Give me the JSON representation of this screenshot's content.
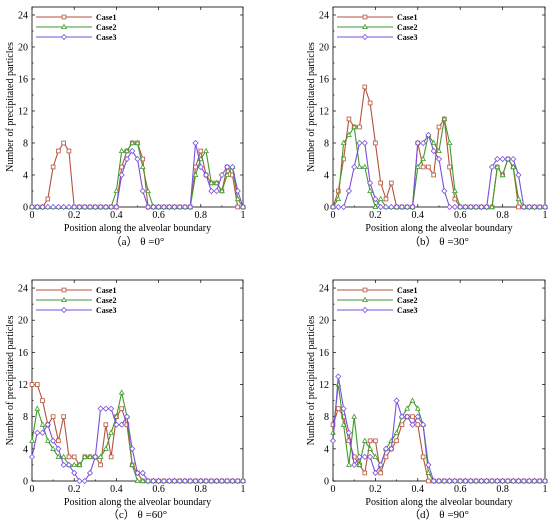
{
  "colors": {
    "case1": "#b5523a",
    "case2": "#3f9a2b",
    "case3": "#7a4fe0"
  },
  "chart_data": [
    {
      "type": "line",
      "panel": "(a)",
      "title": "（a）  θ =0°",
      "xlabel": "Position along the alveolar boundary",
      "ylabel": "Number of precipitated particles",
      "xlim": [
        0,
        1
      ],
      "ylim": [
        0,
        25
      ],
      "xticks": [
        "0",
        "0.2",
        "0.4",
        "0.6",
        "0.8",
        "1"
      ],
      "yticks": [
        "0",
        "4",
        "8",
        "12",
        "16",
        "20",
        "24"
      ],
      "legend": "top-left",
      "x": [
        0,
        0.025,
        0.05,
        0.075,
        0.1,
        0.125,
        0.15,
        0.175,
        0.2,
        0.225,
        0.25,
        0.275,
        0.3,
        0.325,
        0.35,
        0.375,
        0.4,
        0.425,
        0.45,
        0.475,
        0.5,
        0.525,
        0.55,
        0.575,
        0.6,
        0.625,
        0.65,
        0.675,
        0.7,
        0.725,
        0.75,
        0.775,
        0.8,
        0.825,
        0.85,
        0.875,
        0.9,
        0.925,
        0.95,
        0.975,
        1
      ],
      "series": [
        {
          "name": "Case1",
          "values": [
            0,
            0,
            0,
            1,
            5,
            7,
            8,
            7,
            0,
            0,
            0,
            0,
            0,
            0,
            0,
            0,
            0,
            5,
            7,
            8,
            8,
            6,
            0,
            0,
            0,
            0,
            0,
            0,
            0,
            0,
            0,
            5,
            7,
            4,
            3,
            3,
            2,
            5,
            4,
            0,
            0
          ]
        },
        {
          "name": "Case2",
          "values": [
            0,
            0,
            0,
            0,
            0,
            0,
            0,
            0,
            0,
            0,
            0,
            0,
            0,
            0,
            0,
            0,
            2,
            7,
            7,
            8,
            8,
            5,
            2,
            0,
            0,
            0,
            0,
            0,
            0,
            0,
            0,
            4,
            6,
            7,
            3,
            3,
            2,
            4,
            5,
            1,
            0
          ]
        },
        {
          "name": "Case3",
          "values": [
            0,
            0,
            0,
            0,
            0,
            0,
            0,
            0,
            0,
            0,
            0,
            0,
            0,
            0,
            0,
            0,
            0,
            4,
            6,
            7,
            6,
            2,
            0,
            0,
            0,
            0,
            0,
            0,
            0,
            0,
            0,
            8,
            5,
            4,
            2,
            2,
            4,
            5,
            5,
            2,
            0
          ]
        }
      ]
    },
    {
      "type": "line",
      "panel": "(b)",
      "title": "（b）  θ =30°",
      "xlabel": "Position along the alveolar boundary",
      "ylabel": "Number of precipitated particles",
      "xlim": [
        0,
        1
      ],
      "ylim": [
        0,
        25
      ],
      "xticks": [
        "0",
        "0.2",
        "0.4",
        "0.6",
        "0.8",
        "1"
      ],
      "yticks": [
        "0",
        "4",
        "8",
        "12",
        "16",
        "20",
        "24"
      ],
      "legend": "top-left",
      "x": [
        0,
        0.025,
        0.05,
        0.075,
        0.1,
        0.125,
        0.15,
        0.175,
        0.2,
        0.225,
        0.25,
        0.275,
        0.3,
        0.325,
        0.35,
        0.375,
        0.4,
        0.425,
        0.45,
        0.475,
        0.5,
        0.525,
        0.55,
        0.575,
        0.6,
        0.625,
        0.65,
        0.675,
        0.7,
        0.725,
        0.75,
        0.775,
        0.8,
        0.825,
        0.85,
        0.875,
        0.9,
        0.925,
        0.95,
        0.975,
        1
      ],
      "series": [
        {
          "name": "Case1",
          "values": [
            0,
            2,
            6,
            11,
            10,
            10,
            15,
            13,
            8,
            3,
            1,
            3,
            0,
            0,
            0,
            0,
            8,
            5,
            5,
            4,
            10,
            11,
            5,
            1,
            0,
            0,
            0,
            0,
            0,
            0,
            0,
            5,
            4,
            6,
            5,
            0,
            0,
            0,
            0,
            0,
            0
          ]
        },
        {
          "name": "Case2",
          "values": [
            0,
            1,
            8,
            9,
            10,
            5,
            5,
            2,
            0,
            1,
            0,
            0,
            0,
            0,
            0,
            0,
            5,
            6,
            9,
            8,
            7,
            11,
            8,
            2,
            0,
            0,
            0,
            0,
            0,
            0,
            0,
            5,
            4,
            6,
            5,
            1,
            0,
            0,
            0,
            0,
            0
          ]
        },
        {
          "name": "Case3",
          "values": [
            0,
            0,
            0,
            2,
            5,
            8,
            8,
            3,
            1,
            0,
            0,
            0,
            0,
            0,
            0,
            0,
            8,
            8,
            9,
            7,
            6,
            2,
            0,
            0,
            0,
            0,
            0,
            0,
            0,
            0,
            5,
            6,
            6,
            6,
            6,
            4,
            0,
            0,
            0,
            0,
            0
          ]
        }
      ]
    },
    {
      "type": "line",
      "panel": "(c)",
      "title": "（c）  θ =60°",
      "xlabel": "Position along the alveolar boundary",
      "ylabel": "Number of precipitated particles",
      "xlim": [
        0,
        1
      ],
      "ylim": [
        0,
        25
      ],
      "xticks": [
        "0",
        "0.2",
        "0.4",
        "0.6",
        "0.8",
        "1"
      ],
      "yticks": [
        "0",
        "4",
        "8",
        "12",
        "16",
        "20",
        "24"
      ],
      "legend": "top-left",
      "x": [
        0,
        0.025,
        0.05,
        0.075,
        0.1,
        0.125,
        0.15,
        0.175,
        0.2,
        0.225,
        0.25,
        0.275,
        0.3,
        0.325,
        0.35,
        0.375,
        0.4,
        0.425,
        0.45,
        0.475,
        0.5,
        0.525,
        0.55,
        0.575,
        0.6,
        0.625,
        0.65,
        0.675,
        0.7,
        0.725,
        0.75,
        0.775,
        0.8,
        0.825,
        0.85,
        0.875,
        0.9,
        0.925,
        0.95,
        0.975,
        1
      ],
      "series": [
        {
          "name": "Case1",
          "values": [
            12,
            12,
            10,
            7,
            8,
            5,
            8,
            3,
            3,
            2,
            3,
            3,
            3,
            2,
            7,
            3,
            8,
            9,
            7,
            2,
            1,
            0,
            0,
            0,
            0,
            0,
            0,
            0,
            0,
            0,
            0,
            0,
            0,
            0,
            0,
            0,
            0,
            0,
            0,
            0,
            0
          ]
        },
        {
          "name": "Case2",
          "values": [
            5,
            9,
            7,
            5,
            4,
            3,
            3,
            2,
            2,
            2,
            3,
            3,
            3,
            3,
            4,
            6,
            8,
            11,
            8,
            2,
            0,
            0,
            0,
            0,
            0,
            0,
            0,
            0,
            0,
            0,
            0,
            0,
            0,
            0,
            0,
            0,
            0,
            0,
            0,
            0,
            0
          ]
        },
        {
          "name": "Case3",
          "values": [
            3,
            6,
            6,
            7,
            5,
            4,
            2,
            2,
            1,
            0,
            0,
            1,
            3,
            9,
            9,
            9,
            7,
            7,
            8,
            4,
            1,
            1,
            0,
            0,
            0,
            0,
            0,
            0,
            0,
            0,
            0,
            0,
            0,
            0,
            0,
            0,
            0,
            0,
            0,
            0,
            0
          ]
        }
      ]
    },
    {
      "type": "line",
      "panel": "(d)",
      "title": "（d）  θ =90°",
      "xlabel": "Position along the alveolar boundary",
      "ylabel": "Number of precipitated particles",
      "xlim": [
        0,
        1
      ],
      "ylim": [
        0,
        25
      ],
      "xticks": [
        "0",
        "0.2",
        "0.4",
        "0.6",
        "0.8",
        "1"
      ],
      "yticks": [
        "0",
        "4",
        "8",
        "12",
        "16",
        "20",
        "24"
      ],
      "legend": "top-left",
      "x": [
        0,
        0.025,
        0.05,
        0.075,
        0.1,
        0.125,
        0.15,
        0.175,
        0.2,
        0.225,
        0.25,
        0.275,
        0.3,
        0.325,
        0.35,
        0.375,
        0.4,
        0.425,
        0.45,
        0.475,
        0.5,
        0.525,
        0.55,
        0.575,
        0.6,
        0.625,
        0.65,
        0.675,
        0.7,
        0.725,
        0.75,
        0.775,
        0.8,
        0.825,
        0.85,
        0.875,
        0.9,
        0.925,
        0.95,
        0.975,
        1
      ],
      "series": [
        {
          "name": "Case1",
          "values": [
            7,
            9,
            8,
            5,
            3,
            2,
            1,
            5,
            5,
            1,
            3,
            4,
            5,
            7,
            8,
            8,
            7,
            3,
            0,
            0,
            0,
            0,
            0,
            0,
            0,
            0,
            0,
            0,
            0,
            0,
            0,
            0,
            0,
            0,
            0,
            0,
            0,
            0,
            0,
            0,
            0
          ]
        },
        {
          "name": "Case2",
          "values": [
            6,
            12,
            7,
            2,
            8,
            2,
            5,
            4,
            3,
            2,
            4,
            5,
            6,
            8,
            9,
            10,
            9,
            7,
            1,
            0,
            0,
            0,
            0,
            0,
            0,
            0,
            0,
            0,
            0,
            0,
            0,
            0,
            0,
            0,
            0,
            0,
            0,
            0,
            0,
            0,
            0
          ]
        },
        {
          "name": "Case3",
          "values": [
            5,
            13,
            9,
            6,
            2,
            3,
            3,
            3,
            1,
            2,
            4,
            4,
            10,
            8,
            8,
            7,
            8,
            7,
            2,
            0,
            0,
            0,
            0,
            0,
            0,
            0,
            0,
            0,
            0,
            0,
            0,
            0,
            0,
            0,
            0,
            0,
            0,
            0,
            0,
            0,
            0
          ]
        }
      ]
    }
  ]
}
